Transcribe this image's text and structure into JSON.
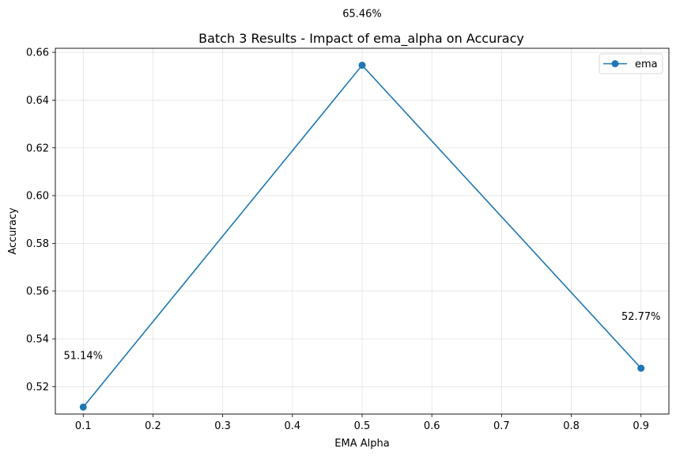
{
  "chart_data": {
    "type": "line",
    "title": "Batch 3 Results - Impact of ema_alpha on Accuracy",
    "xlabel": "EMA Alpha",
    "ylabel": "Accuracy",
    "xlim": [
      0.06,
      0.94
    ],
    "ylim": [
      0.5085,
      0.6617
    ],
    "xticks": [
      0.1,
      0.2,
      0.3,
      0.4,
      0.5,
      0.6,
      0.7,
      0.8,
      0.9
    ],
    "xtick_labels": [
      "0.1",
      "0.2",
      "0.3",
      "0.4",
      "0.5",
      "0.6",
      "0.7",
      "0.8",
      "0.9"
    ],
    "yticks": [
      0.52,
      0.54,
      0.56,
      0.58,
      0.6,
      0.62,
      0.64,
      0.66
    ],
    "ytick_labels": [
      "0.52",
      "0.54",
      "0.56",
      "0.58",
      "0.60",
      "0.62",
      "0.64",
      "0.66"
    ],
    "grid": true,
    "legend_position": "top-right",
    "series": [
      {
        "name": "ema",
        "color": "#1f77b4",
        "marker": "circle",
        "x": [
          0.1,
          0.5,
          0.9
        ],
        "y": [
          0.5114,
          0.6546,
          0.5277
        ]
      }
    ],
    "annotations": [
      {
        "text": "51.14%",
        "x": 0.1,
        "y": 0.5114
      },
      {
        "text": "65.46%",
        "x": 0.5,
        "y": 0.6546
      },
      {
        "text": "52.77%",
        "x": 0.9,
        "y": 0.5277
      }
    ]
  }
}
